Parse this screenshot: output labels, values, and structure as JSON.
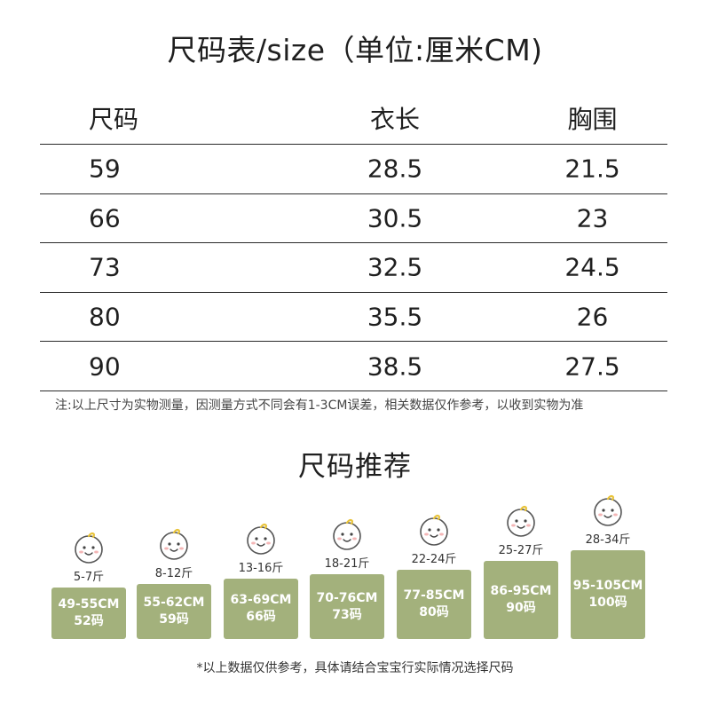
{
  "title": "尺码表/size（单位:厘米CM)",
  "table": {
    "headers": [
      "尺码",
      "衣长",
      "胸围"
    ],
    "rows": [
      [
        "59",
        "28.5",
        "21.5"
      ],
      [
        "66",
        "30.5",
        "23"
      ],
      [
        "73",
        "32.5",
        "24.5"
      ],
      [
        "80",
        "35.5",
        "26"
      ],
      [
        "90",
        "38.5",
        "27.5"
      ]
    ]
  },
  "note": "注:以上尺寸为实物测量，因测量方式不同会有1-3CM误差，相关数据仅作参考，以收到实物为准",
  "recommend_title": "尺码推荐",
  "recommend": [
    {
      "weight": "5-7斤",
      "cm": "49-55CM",
      "size": "52码"
    },
    {
      "weight": "8-12斤",
      "cm": "55-62CM",
      "size": "59码"
    },
    {
      "weight": "13-16斤",
      "cm": "63-69CM",
      "size": "66码"
    },
    {
      "weight": "18-21斤",
      "cm": "70-76CM",
      "size": "73码"
    },
    {
      "weight": "22-24斤",
      "cm": "77-85CM",
      "size": "80码"
    },
    {
      "weight": "25-27斤",
      "cm": "86-95CM",
      "size": "90码"
    },
    {
      "weight": "28-34斤",
      "cm": "95-105CM",
      "size": "100码"
    }
  ],
  "footnote": "*以上数据仅供参考，具体请结合宝宝行实际情况选择尺码",
  "colors": {
    "box": "#a3b17c",
    "text": "#1f1f1f"
  },
  "icon": "baby-face-icon"
}
